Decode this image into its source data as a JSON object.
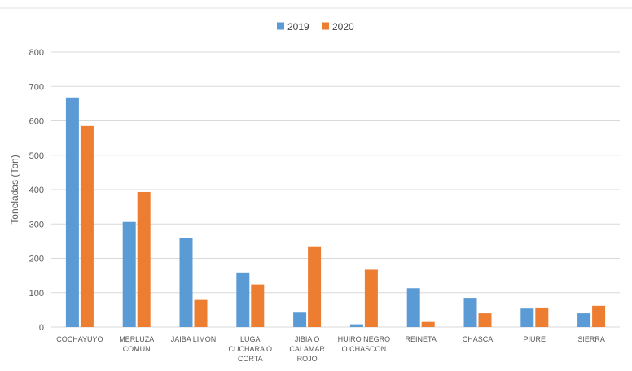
{
  "chart_data": {
    "type": "bar",
    "title": "",
    "xlabel": "",
    "ylabel": "Toneladas (Ton)",
    "ylim": [
      0,
      800
    ],
    "yticks": [
      0,
      100,
      200,
      300,
      400,
      500,
      600,
      700,
      800
    ],
    "grid": true,
    "legend_position": "top-center",
    "categories": [
      [
        "COCHAYUYO"
      ],
      [
        "MERLUZA",
        "COMUN"
      ],
      [
        "JAIBA LIMON"
      ],
      [
        "LUGA",
        "CUCHARA O",
        "CORTA"
      ],
      [
        "JIBIA O",
        "CALAMAR",
        "ROJO"
      ],
      [
        "HUIRO NEGRO",
        "O CHASCON"
      ],
      [
        "REINETA"
      ],
      [
        "CHASCA"
      ],
      [
        "PIURE"
      ],
      [
        "SIERRA"
      ]
    ],
    "series": [
      {
        "name": "2019",
        "color": "#5b9bd5",
        "values": [
          668,
          306,
          258,
          159,
          42,
          8,
          113,
          85,
          54,
          40
        ]
      },
      {
        "name": "2020",
        "color": "#ed7d31",
        "values": [
          585,
          393,
          79,
          124,
          235,
          167,
          15,
          40,
          57,
          62
        ]
      }
    ]
  }
}
